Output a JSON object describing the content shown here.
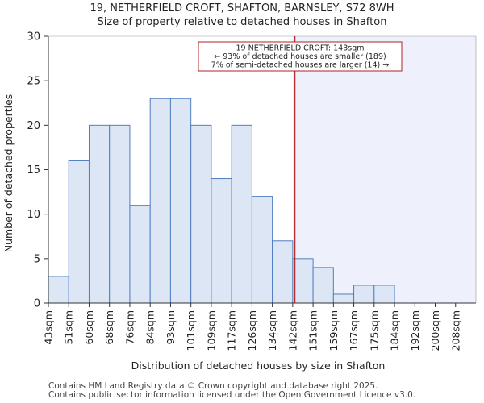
{
  "chart_data": {
    "type": "bar",
    "title": "19, NETHERFIELD CROFT, SHAFTON, BARNSLEY, S72 8WH",
    "subtitle": "Size of property relative to detached houses in Shafton",
    "xlabel": "Distribution of detached houses by size in Shafton",
    "ylabel": "Number of detached properties",
    "categories": [
      "43sqm",
      "51sqm",
      "60sqm",
      "68sqm",
      "76sqm",
      "84sqm",
      "93sqm",
      "101sqm",
      "109sqm",
      "117sqm",
      "126sqm",
      "134sqm",
      "142sqm",
      "151sqm",
      "159sqm",
      "167sqm",
      "175sqm",
      "184sqm",
      "192sqm",
      "200sqm",
      "208sqm"
    ],
    "values": [
      3,
      16,
      20,
      20,
      11,
      23,
      23,
      20,
      14,
      20,
      12,
      7,
      5,
      4,
      1,
      2,
      2,
      0,
      0,
      0,
      0
    ],
    "ylim": [
      0,
      30
    ],
    "yticks": [
      0,
      5,
      10,
      15,
      20,
      25,
      30
    ],
    "marker_value": 143,
    "marker_bin_index": 12,
    "annotation": {
      "line1": "19 NETHERFIELD CROFT: 143sqm",
      "line2": "← 93% of detached houses are smaller (189)",
      "line3": "7% of semi-detached houses are larger (14) →"
    },
    "colors": {
      "bar_fill": "#dce6f4",
      "bar_stroke": "#4f7ec2",
      "highlight_region": "#eef1fb",
      "marker_line": "#b22222",
      "annotation_border": "#b22222"
    }
  },
  "footer": {
    "line1": "Contains HM Land Registry data © Crown copyright and database right 2025.",
    "line2": "Contains public sector information licensed under the Open Government Licence v3.0."
  }
}
